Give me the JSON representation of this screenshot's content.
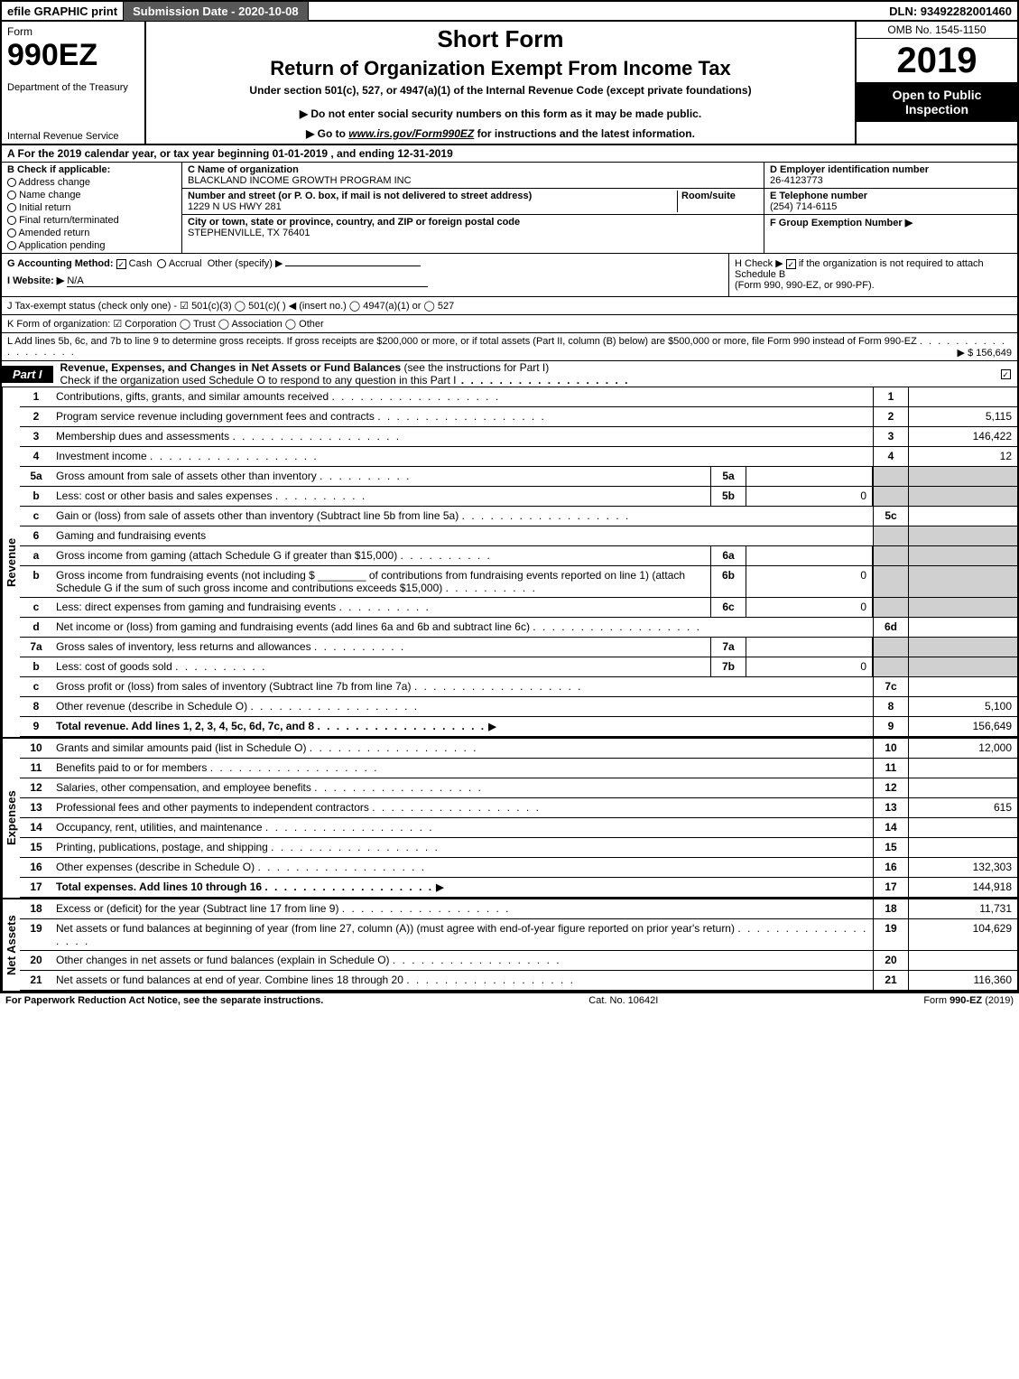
{
  "topbar": {
    "efile": "efile GRAPHIC print",
    "submission_btn": "Submission Date - 2020-10-08",
    "dln": "DLN: 93492282001460"
  },
  "header": {
    "form_word": "Form",
    "form_number": "990EZ",
    "dept": "Department of the Treasury",
    "irs": "Internal Revenue Service",
    "short_form": "Short Form",
    "return_title": "Return of Organization Exempt From Income Tax",
    "under_section": "Under section 501(c), 527, or 4947(a)(1) of the Internal Revenue Code (except private foundations)",
    "donot": "▶ Do not enter social security numbers on this form as it may be made public.",
    "goto_pre": "▶ Go to ",
    "goto_link": "www.irs.gov/Form990EZ",
    "goto_post": " for instructions and the latest information.",
    "omb": "OMB No. 1545-1150",
    "year": "2019",
    "open": "Open to Public Inspection"
  },
  "line_a": "A For the 2019 calendar year, or tax year beginning 01-01-2019 , and ending 12-31-2019",
  "section_b": {
    "hdr": "B Check if applicable:",
    "items": [
      "Address change",
      "Name change",
      "Initial return",
      "Final return/terminated",
      "Amended return",
      "Application pending"
    ]
  },
  "section_c": {
    "name_lbl": "C Name of organization",
    "name": "BLACKLAND INCOME GROWTH PROGRAM INC",
    "addr_lbl": "Number and street (or P. O. box, if mail is not delivered to street address)",
    "room_lbl": "Room/suite",
    "addr": "1229 N US HWY 281",
    "city_lbl": "City or town, state or province, country, and ZIP or foreign postal code",
    "city": "STEPHENVILLE, TX  76401"
  },
  "section_d": {
    "lbl": "D Employer identification number",
    "val": "26-4123773"
  },
  "section_e": {
    "lbl": "E Telephone number",
    "val": "(254) 714-6115"
  },
  "section_f": {
    "lbl": "F Group Exemption Number ▶",
    "val": ""
  },
  "row_g": {
    "g_lbl": "G Accounting Method:",
    "g_cash": "Cash",
    "g_accrual": "Accrual",
    "g_other": "Other (specify) ▶",
    "i_lbl": "I Website: ▶",
    "i_val": "N/A"
  },
  "row_h": {
    "lbl": "H Check ▶",
    "txt": " if the organization is not required to attach Schedule B",
    "txt2": "(Form 990, 990-EZ, or 990-PF)."
  },
  "row_j": "J Tax-exempt status (check only one) -  ☑ 501(c)(3)  ◯ 501(c)(   ) ◀ (insert no.)  ◯ 4947(a)(1) or  ◯ 527",
  "row_k": "K Form of organization:   ☑ Corporation   ◯ Trust   ◯ Association   ◯ Other",
  "row_l": {
    "txt": "L Add lines 5b, 6c, and 7b to line 9 to determine gross receipts. If gross receipts are $200,000 or more, or if total assets (Part II, column (B) below) are $500,000 or more, file Form 990 instead of Form 990-EZ",
    "val": "▶ $ 156,649"
  },
  "part1": {
    "tag": "Part I",
    "title": "Revenue, Expenses, and Changes in Net Assets or Fund Balances",
    "sub": "(see the instructions for Part I)",
    "check_line": "Check if the organization used Schedule O to respond to any question in this Part I"
  },
  "sections": {
    "revenue_label": "Revenue",
    "expenses_label": "Expenses",
    "netassets_label": "Net Assets"
  },
  "lines": {
    "l1": {
      "num": "1",
      "desc": "Contributions, gifts, grants, and similar amounts received",
      "box": "1",
      "val": ""
    },
    "l2": {
      "num": "2",
      "desc": "Program service revenue including government fees and contracts",
      "box": "2",
      "val": "5,115"
    },
    "l3": {
      "num": "3",
      "desc": "Membership dues and assessments",
      "box": "3",
      "val": "146,422"
    },
    "l4": {
      "num": "4",
      "desc": "Investment income",
      "box": "4",
      "val": "12"
    },
    "l5a": {
      "num": "5a",
      "desc": "Gross amount from sale of assets other than inventory",
      "sub": "5a",
      "subval": ""
    },
    "l5b": {
      "num": "b",
      "desc": "Less: cost or other basis and sales expenses",
      "sub": "5b",
      "subval": "0"
    },
    "l5c": {
      "num": "c",
      "desc": "Gain or (loss) from sale of assets other than inventory (Subtract line 5b from line 5a)",
      "box": "5c",
      "val": ""
    },
    "l6": {
      "num": "6",
      "desc": "Gaming and fundraising events"
    },
    "l6a": {
      "num": "a",
      "desc": "Gross income from gaming (attach Schedule G if greater than $15,000)",
      "sub": "6a",
      "subval": ""
    },
    "l6b": {
      "num": "b",
      "desc": "Gross income from fundraising events (not including $ ________ of contributions from fundraising events reported on line 1) (attach Schedule G if the sum of such gross income and contributions exceeds $15,000)",
      "sub": "6b",
      "subval": "0"
    },
    "l6c": {
      "num": "c",
      "desc": "Less: direct expenses from gaming and fundraising events",
      "sub": "6c",
      "subval": "0"
    },
    "l6d": {
      "num": "d",
      "desc": "Net income or (loss) from gaming and fundraising events (add lines 6a and 6b and subtract line 6c)",
      "box": "6d",
      "val": ""
    },
    "l7a": {
      "num": "7a",
      "desc": "Gross sales of inventory, less returns and allowances",
      "sub": "7a",
      "subval": ""
    },
    "l7b": {
      "num": "b",
      "desc": "Less: cost of goods sold",
      "sub": "7b",
      "subval": "0"
    },
    "l7c": {
      "num": "c",
      "desc": "Gross profit or (loss) from sales of inventory (Subtract line 7b from line 7a)",
      "box": "7c",
      "val": ""
    },
    "l8": {
      "num": "8",
      "desc": "Other revenue (describe in Schedule O)",
      "box": "8",
      "val": "5,100"
    },
    "l9": {
      "num": "9",
      "desc": "Total revenue. Add lines 1, 2, 3, 4, 5c, 6d, 7c, and 8",
      "box": "9",
      "val": "156,649",
      "bold": true,
      "arrow": true
    },
    "l10": {
      "num": "10",
      "desc": "Grants and similar amounts paid (list in Schedule O)",
      "box": "10",
      "val": "12,000"
    },
    "l11": {
      "num": "11",
      "desc": "Benefits paid to or for members",
      "box": "11",
      "val": ""
    },
    "l12": {
      "num": "12",
      "desc": "Salaries, other compensation, and employee benefits",
      "box": "12",
      "val": ""
    },
    "l13": {
      "num": "13",
      "desc": "Professional fees and other payments to independent contractors",
      "box": "13",
      "val": "615"
    },
    "l14": {
      "num": "14",
      "desc": "Occupancy, rent, utilities, and maintenance",
      "box": "14",
      "val": ""
    },
    "l15": {
      "num": "15",
      "desc": "Printing, publications, postage, and shipping",
      "box": "15",
      "val": ""
    },
    "l16": {
      "num": "16",
      "desc": "Other expenses (describe in Schedule O)",
      "box": "16",
      "val": "132,303"
    },
    "l17": {
      "num": "17",
      "desc": "Total expenses. Add lines 10 through 16",
      "box": "17",
      "val": "144,918",
      "bold": true,
      "arrow": true
    },
    "l18": {
      "num": "18",
      "desc": "Excess or (deficit) for the year (Subtract line 17 from line 9)",
      "box": "18",
      "val": "11,731"
    },
    "l19": {
      "num": "19",
      "desc": "Net assets or fund balances at beginning of year (from line 27, column (A)) (must agree with end-of-year figure reported on prior year's return)",
      "box": "19",
      "val": "104,629"
    },
    "l20": {
      "num": "20",
      "desc": "Other changes in net assets or fund balances (explain in Schedule O)",
      "box": "20",
      "val": ""
    },
    "l21": {
      "num": "21",
      "desc": "Net assets or fund balances at end of year. Combine lines 18 through 20",
      "box": "21",
      "val": "116,360"
    }
  },
  "footer": {
    "l": "For Paperwork Reduction Act Notice, see the separate instructions.",
    "m": "Cat. No. 10642I",
    "r_pre": "Form ",
    "r_b": "990-EZ",
    "r_post": " (2019)"
  }
}
